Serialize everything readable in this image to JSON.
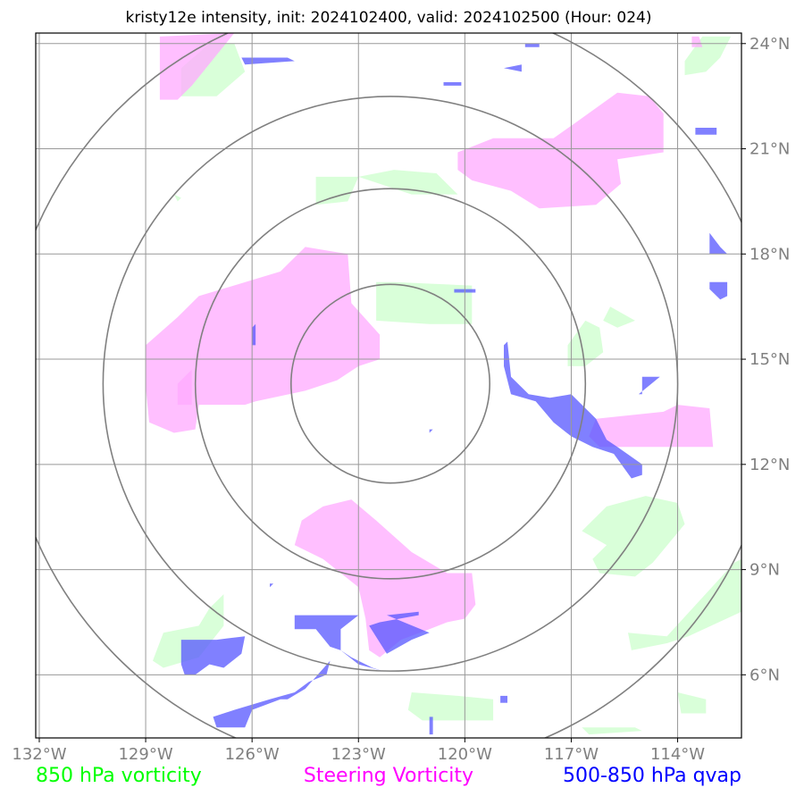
{
  "chart_data": {
    "type": "map",
    "title": "kristy12e intensity, init: 2024102400, valid: 2024102500 (Hour: 024)",
    "lon_range": [
      -132.1,
      -112.2
    ],
    "lat_range": [
      4.2,
      24.3
    ],
    "lon_ticks": [
      -132,
      -129,
      -126,
      -123,
      -120,
      -117,
      -114
    ],
    "lon_tick_labels": [
      "132°W",
      "129°W",
      "126°W",
      "123°W",
      "120°W",
      "117°W",
      "114°W"
    ],
    "lat_ticks": [
      6,
      9,
      12,
      15,
      18,
      21,
      24
    ],
    "lat_tick_labels": [
      "6°N",
      "9°N",
      "12°N",
      "15°N",
      "18°N",
      "21°N",
      "24°N"
    ],
    "grid": true,
    "range_rings": {
      "center": [
        -122.1,
        14.3
      ],
      "radii_deg": [
        2.8,
        5.5,
        8.1,
        10.9
      ]
    },
    "legend": [
      {
        "label": "850 hPa vorticity",
        "color": "#00ff00"
      },
      {
        "label": "Steering Vorticity",
        "color": "#ff00ff"
      },
      {
        "label": "500-850 hPa qvap",
        "color": "#0000ff"
      }
    ],
    "fill_colors": {
      "vorticity_850": "#ccffcc",
      "steering": "#ffaaff",
      "qvap": "#5555ff"
    },
    "regions": {
      "vorticity_850": [
        [
          [
            -128.0,
            23.3
          ],
          [
            -127.2,
            24.0
          ],
          [
            -126.5,
            24.0
          ],
          [
            -126.2,
            23.2
          ],
          [
            -127.0,
            22.5
          ],
          [
            -128.0,
            22.5
          ]
        ],
        [
          [
            -113.8,
            23.5
          ],
          [
            -113.3,
            24.2
          ],
          [
            -112.5,
            24.2
          ],
          [
            -112.8,
            23.6
          ],
          [
            -113.2,
            23.2
          ],
          [
            -113.8,
            23.1
          ]
        ],
        [
          [
            -124.2,
            20.2
          ],
          [
            -123.0,
            20.2
          ],
          [
            -121.5,
            19.7
          ],
          [
            -120.2,
            19.7
          ],
          [
            -120.8,
            20.3
          ],
          [
            -122.0,
            20.4
          ],
          [
            -123.0,
            20.2
          ],
          [
            -123.3,
            19.5
          ],
          [
            -124.2,
            19.4
          ]
        ],
        [
          [
            -122.5,
            17.2
          ],
          [
            -122.0,
            17.2
          ],
          [
            -119.8,
            17.1
          ],
          [
            -119.8,
            16.0
          ],
          [
            -121.0,
            16.0
          ],
          [
            -122.5,
            16.1
          ]
        ],
        [
          [
            -115.9,
            16.5
          ],
          [
            -115.2,
            16.1
          ],
          [
            -115.7,
            15.9
          ],
          [
            -116.1,
            16.1
          ]
        ],
        [
          [
            -117.1,
            15.4
          ],
          [
            -116.6,
            16.1
          ],
          [
            -116.2,
            15.9
          ],
          [
            -116.1,
            15.2
          ],
          [
            -116.6,
            14.8
          ],
          [
            -117.1,
            14.8
          ]
        ],
        [
          [
            -116.0,
            10.8
          ],
          [
            -114.9,
            11.1
          ],
          [
            -114.0,
            10.9
          ],
          [
            -113.8,
            10.3
          ],
          [
            -114.7,
            9.2
          ],
          [
            -115.2,
            8.8
          ],
          [
            -116.2,
            8.9
          ],
          [
            -116.4,
            9.3
          ],
          [
            -116.0,
            9.7
          ],
          [
            -116.7,
            10.1
          ]
        ],
        [
          [
            -112.4,
            9.2
          ],
          [
            -112.2,
            9.3
          ],
          [
            -112.2,
            7.8
          ],
          [
            -113.7,
            7.1
          ],
          [
            -114.3,
            6.9
          ],
          [
            -115.3,
            6.7
          ],
          [
            -115.4,
            7.2
          ],
          [
            -114.3,
            7.1
          ]
        ],
        [
          [
            -128.5,
            7.2
          ],
          [
            -127.5,
            7.4
          ],
          [
            -127.2,
            7.9
          ],
          [
            -126.8,
            8.3
          ],
          [
            -126.8,
            7.4
          ],
          [
            -127.5,
            6.5
          ],
          [
            -128.5,
            6.2
          ],
          [
            -128.8,
            6.4
          ]
        ],
        [
          [
            -121.5,
            5.5
          ],
          [
            -120.2,
            5.4
          ],
          [
            -119.2,
            5.3
          ],
          [
            -119.2,
            4.7
          ],
          [
            -121.2,
            4.7
          ],
          [
            -121.6,
            5.0
          ]
        ],
        [
          [
            -114.0,
            5.5
          ],
          [
            -113.2,
            5.3
          ],
          [
            -113.2,
            4.9
          ],
          [
            -113.9,
            4.9
          ]
        ],
        [
          [
            -116.7,
            4.5
          ],
          [
            -115.2,
            4.5
          ],
          [
            -115.0,
            4.4
          ],
          [
            -116.5,
            4.3
          ]
        ],
        [
          [
            -128.2,
            19.7
          ],
          [
            -128.0,
            19.6
          ],
          [
            -128.1,
            19.5
          ]
        ]
      ],
      "steering": [
        [
          [
            -128.6,
            24.2
          ],
          [
            -126.5,
            24.3
          ],
          [
            -127.7,
            22.8
          ],
          [
            -128.1,
            22.4
          ],
          [
            -128.6,
            22.4
          ]
        ],
        [
          [
            -113.6,
            24.2
          ],
          [
            -113.4,
            24.2
          ],
          [
            -113.3,
            23.9
          ],
          [
            -113.6,
            23.9
          ]
        ],
        [
          [
            -120.2,
            20.9
          ],
          [
            -119.2,
            21.3
          ],
          [
            -117.5,
            21.3
          ],
          [
            -116.8,
            21.8
          ],
          [
            -115.7,
            22.6
          ],
          [
            -114.8,
            22.5
          ],
          [
            -114.4,
            22.0
          ],
          [
            -114.4,
            20.9
          ],
          [
            -115.7,
            20.7
          ],
          [
            -115.6,
            20.0
          ],
          [
            -116.3,
            19.4
          ],
          [
            -117.9,
            19.3
          ],
          [
            -118.7,
            19.8
          ],
          [
            -119.8,
            20.1
          ],
          [
            -120.2,
            20.4
          ]
        ],
        [
          [
            -125.2,
            17.5
          ],
          [
            -124.5,
            18.2
          ],
          [
            -123.3,
            18.0
          ],
          [
            -123.2,
            16.6
          ],
          [
            -122.4,
            15.7
          ],
          [
            -122.4,
            15.0
          ],
          [
            -123.0,
            14.8
          ],
          [
            -123.6,
            14.4
          ],
          [
            -124.5,
            14.1
          ],
          [
            -125.9,
            13.8
          ],
          [
            -126.2,
            13.7
          ],
          [
            -127.5,
            13.7
          ],
          [
            -127.6,
            13.0
          ],
          [
            -128.2,
            12.9
          ],
          [
            -128.9,
            13.2
          ],
          [
            -129.0,
            14.2
          ],
          [
            -129.0,
            15.4
          ],
          [
            -128.1,
            16.2
          ],
          [
            -127.5,
            16.8
          ]
        ],
        [
          [
            -116.3,
            13.3
          ],
          [
            -114.4,
            13.5
          ],
          [
            -114.0,
            13.7
          ],
          [
            -113.1,
            13.6
          ],
          [
            -113.0,
            12.5
          ],
          [
            -116.2,
            12.5
          ],
          [
            -116.5,
            12.8
          ]
        ],
        [
          [
            -123.2,
            11.0
          ],
          [
            -122.5,
            10.4
          ],
          [
            -121.5,
            9.5
          ],
          [
            -120.5,
            8.9
          ],
          [
            -119.8,
            8.9
          ],
          [
            -119.7,
            8.0
          ],
          [
            -120.0,
            7.6
          ],
          [
            -120.5,
            7.5
          ],
          [
            -121.0,
            7.3
          ],
          [
            -121.8,
            7.0
          ],
          [
            -122.4,
            6.5
          ],
          [
            -122.7,
            6.7
          ],
          [
            -122.8,
            7.6
          ],
          [
            -123.0,
            8.5
          ],
          [
            -124.0,
            9.3
          ],
          [
            -124.8,
            9.7
          ],
          [
            -124.6,
            10.4
          ],
          [
            -124.0,
            10.8
          ]
        ],
        [
          [
            -128.1,
            14.3
          ],
          [
            -127.7,
            14.7
          ],
          [
            -127.7,
            13.7
          ],
          [
            -128.1,
            13.7
          ]
        ]
      ],
      "qvap": [
        [
          [
            -126.3,
            23.6
          ],
          [
            -125.0,
            23.6
          ],
          [
            -124.8,
            23.5
          ],
          [
            -126.2,
            23.4
          ]
        ],
        [
          [
            -120.6,
            22.9
          ],
          [
            -120.1,
            22.9
          ],
          [
            -120.1,
            22.8
          ],
          [
            -120.6,
            22.8
          ]
        ],
        [
          [
            -118.9,
            23.3
          ],
          [
            -118.4,
            23.4
          ],
          [
            -118.4,
            23.2
          ]
        ],
        [
          [
            -118.3,
            24.0
          ],
          [
            -117.9,
            24.0
          ],
          [
            -117.9,
            23.9
          ],
          [
            -118.3,
            23.9
          ]
        ],
        [
          [
            -113.5,
            21.6
          ],
          [
            -112.9,
            21.6
          ],
          [
            -112.9,
            21.4
          ],
          [
            -113.5,
            21.4
          ]
        ],
        [
          [
            -113.1,
            18.6
          ],
          [
            -112.8,
            18.2
          ],
          [
            -112.6,
            18.0
          ],
          [
            -113.1,
            18.0
          ]
        ],
        [
          [
            -113.1,
            17.2
          ],
          [
            -112.6,
            17.2
          ],
          [
            -112.6,
            16.8
          ],
          [
            -112.8,
            16.7
          ],
          [
            -113.1,
            17.0
          ]
        ],
        [
          [
            -120.3,
            17.0
          ],
          [
            -119.7,
            17.0
          ],
          [
            -119.7,
            16.9
          ],
          [
            -120.3,
            16.9
          ]
        ],
        [
          [
            -126.0,
            15.9
          ],
          [
            -125.9,
            16.0
          ],
          [
            -125.9,
            15.4
          ],
          [
            -126.0,
            15.4
          ]
        ],
        [
          [
            -118.9,
            15.4
          ],
          [
            -118.8,
            15.5
          ],
          [
            -118.7,
            14.5
          ],
          [
            -118.2,
            14.0
          ],
          [
            -117.6,
            13.9
          ],
          [
            -117.0,
            14.0
          ],
          [
            -116.3,
            13.3
          ],
          [
            -116.0,
            12.7
          ],
          [
            -115.7,
            12.5
          ],
          [
            -115.0,
            12.0
          ],
          [
            -115.0,
            11.7
          ],
          [
            -115.3,
            11.6
          ],
          [
            -115.8,
            12.3
          ],
          [
            -116.4,
            12.5
          ],
          [
            -117.0,
            12.8
          ],
          [
            -117.5,
            13.2
          ],
          [
            -118.0,
            13.8
          ],
          [
            -118.7,
            14.0
          ],
          [
            -118.9,
            14.8
          ]
        ],
        [
          [
            -115.0,
            14.5
          ],
          [
            -114.5,
            14.5
          ],
          [
            -115.1,
            14.0
          ],
          [
            -115.0,
            14.0
          ]
        ],
        [
          [
            -121.0,
            13.0
          ],
          [
            -120.9,
            13.0
          ],
          [
            -121.0,
            12.9
          ]
        ],
        [
          [
            -125.5,
            8.6
          ],
          [
            -125.4,
            8.6
          ],
          [
            -125.5,
            8.5
          ]
        ],
        [
          [
            -122.2,
            7.7
          ],
          [
            -121.3,
            7.8
          ],
          [
            -121.3,
            7.7
          ],
          [
            -122.4,
            7.5
          ],
          [
            -122.7,
            7.4
          ],
          [
            -122.2,
            6.6
          ],
          [
            -121.5,
            7.0
          ],
          [
            -121.0,
            7.2
          ]
        ],
        [
          [
            -123.0,
            7.7
          ],
          [
            -124.8,
            7.7
          ],
          [
            -124.8,
            7.3
          ],
          [
            -124.2,
            7.3
          ],
          [
            -123.8,
            6.8
          ],
          [
            -123.5,
            6.7
          ],
          [
            -123.5,
            7.3
          ],
          [
            -123.0,
            7.7
          ]
        ],
        [
          [
            -127.6,
            7.0
          ],
          [
            -127.0,
            7.0
          ],
          [
            -126.2,
            7.1
          ],
          [
            -126.3,
            6.6
          ],
          [
            -126.8,
            6.2
          ],
          [
            -127.2,
            6.3
          ],
          [
            -127.6,
            6.0
          ],
          [
            -127.9,
            6.0
          ],
          [
            -128.0,
            6.3
          ],
          [
            -128.0,
            7.0
          ]
        ],
        [
          [
            -123.5,
            6.7
          ],
          [
            -123.0,
            6.3
          ],
          [
            -122.3,
            6.1
          ],
          [
            -122.6,
            6.2
          ],
          [
            -123.2,
            6.5
          ]
        ],
        [
          [
            -123.8,
            6.4
          ],
          [
            -124.5,
            5.6
          ],
          [
            -125.0,
            5.3
          ],
          [
            -125.2,
            5.3
          ],
          [
            -126.0,
            5.0
          ],
          [
            -126.2,
            4.5
          ],
          [
            -127.0,
            4.5
          ],
          [
            -127.1,
            4.8
          ],
          [
            -126.5,
            5.0
          ],
          [
            -125.5,
            5.3
          ],
          [
            -124.8,
            5.5
          ],
          [
            -124.4,
            5.8
          ],
          [
            -123.9,
            6.0
          ]
        ],
        [
          [
            -121.0,
            4.8
          ],
          [
            -120.9,
            4.8
          ],
          [
            -120.9,
            4.3
          ],
          [
            -121.0,
            4.3
          ]
        ],
        [
          [
            -119.0,
            5.4
          ],
          [
            -118.8,
            5.4
          ],
          [
            -118.8,
            5.2
          ],
          [
            -119.0,
            5.2
          ]
        ]
      ]
    }
  }
}
